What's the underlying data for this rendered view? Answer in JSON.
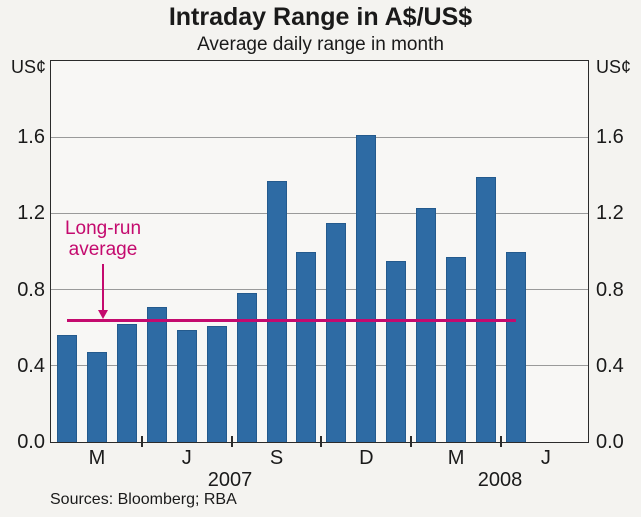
{
  "title": "Intraday Range in A$/US$",
  "subtitle": "Average daily range in month",
  "y_axis": {
    "unit_left": "US¢",
    "unit_right": "US¢",
    "tick_labels": [
      "0.0",
      "0.4",
      "0.8",
      "1.2",
      "1.6"
    ]
  },
  "x_axis": {
    "month_labels": [
      "M",
      "J",
      "S",
      "D",
      "M",
      "J"
    ],
    "year_labels": [
      "2007",
      "2008"
    ]
  },
  "annotation": {
    "line1": "Long-run",
    "line2": "average"
  },
  "source_note": "Sources: Bloomberg; RBA",
  "colors": {
    "bar_fill": "#2e6ba4",
    "bar_border": "#245a8d",
    "accent_pink": "#c40a6e",
    "grid": "#9a9a9a",
    "axis": "#2b2b2b",
    "text": "#1a1a1a"
  },
  "chart_data": {
    "type": "bar",
    "title": "Intraday Range in A$/US$",
    "subtitle": "Average daily range in month",
    "ylabel": "US¢",
    "ylim": [
      0,
      2.0
    ],
    "ytick_interval": 0.4,
    "grid": true,
    "categories": [
      "Feb 2007",
      "Mar 2007",
      "Apr 2007",
      "May 2007",
      "Jun 2007",
      "Jul 2007",
      "Aug 2007",
      "Sep 2007",
      "Oct 2007",
      "Nov 2007",
      "Dec 2007",
      "Jan 2008",
      "Feb 2008",
      "Mar 2008",
      "Apr 2008",
      "May 2008"
    ],
    "values": [
      0.56,
      0.47,
      0.62,
      0.71,
      0.59,
      0.61,
      0.78,
      1.37,
      1.0,
      1.15,
      1.61,
      0.95,
      1.23,
      0.97,
      1.39,
      1.0
    ],
    "reference_line": {
      "label": "Long-run average",
      "value": 0.64
    },
    "x_tick_positions_note": "month initials every 3rd bar starting Mar 2007; quarter tick marks between every 3rd bar",
    "source": "Sources: Bloomberg; RBA"
  }
}
